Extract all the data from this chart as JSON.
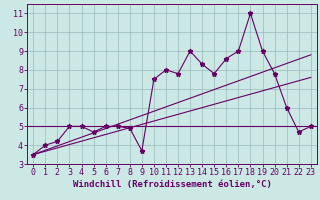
{
  "xlabel": "Windchill (Refroidissement éolien,°C)",
  "bg_color": "#cce8e4",
  "line_color": "#660066",
  "grid_color": "#99bbbb",
  "x_data": [
    0,
    1,
    2,
    3,
    4,
    5,
    6,
    7,
    8,
    9,
    10,
    11,
    12,
    13,
    14,
    15,
    16,
    17,
    18,
    19,
    20,
    21,
    22,
    23
  ],
  "y_main": [
    3.5,
    4.0,
    4.2,
    5.0,
    5.0,
    4.7,
    5.0,
    5.0,
    4.9,
    3.7,
    7.5,
    8.0,
    7.8,
    9.0,
    8.3,
    7.8,
    8.6,
    9.0,
    11.0,
    9.0,
    7.8,
    6.0,
    4.7,
    5.0
  ],
  "y_trend1_x": [
    0,
    23
  ],
  "y_trend1_y": [
    3.5,
    7.6
  ],
  "y_trend2_x": [
    0,
    23
  ],
  "y_trend2_y": [
    3.5,
    8.8
  ],
  "y_hline": 5.0,
  "ylim": [
    3,
    11.5
  ],
  "xlim": [
    -0.5,
    23.5
  ],
  "yticks": [
    3,
    4,
    5,
    6,
    7,
    8,
    9,
    10,
    11
  ],
  "xticks": [
    0,
    1,
    2,
    3,
    4,
    5,
    6,
    7,
    8,
    9,
    10,
    11,
    12,
    13,
    14,
    15,
    16,
    17,
    18,
    19,
    20,
    21,
    22,
    23
  ],
  "tick_fontsize": 6.0,
  "xlabel_fontsize": 6.5
}
